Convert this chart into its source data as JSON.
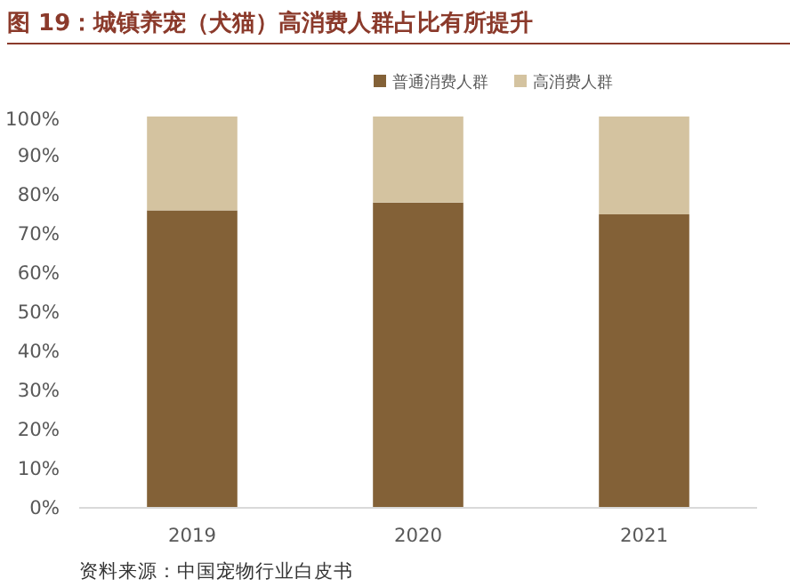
{
  "chart_data": {
    "type": "bar",
    "title": "图 19：城镇养宠（犬猫）高消费人群占比有所提升",
    "categories": [
      "2019",
      "2020",
      "2021"
    ],
    "stacked": true,
    "series": [
      {
        "name": "普通消费人群",
        "color": "#836137",
        "values": [
          76,
          78,
          75
        ]
      },
      {
        "name": "高消费人群",
        "color": "#d4c3a0",
        "values": [
          24,
          22,
          25
        ]
      }
    ],
    "ylim": [
      0,
      100
    ],
    "yticks": [
      {
        "value": 0,
        "label": "0%"
      },
      {
        "value": 10,
        "label": "10%"
      },
      {
        "value": 20,
        "label": "20%"
      },
      {
        "value": 30,
        "label": "30%"
      },
      {
        "value": 40,
        "label": "40%"
      },
      {
        "value": 50,
        "label": "50%"
      },
      {
        "value": 60,
        "label": "60%"
      },
      {
        "value": 70,
        "label": "70%"
      },
      {
        "value": 80,
        "label": "80%"
      },
      {
        "value": 90,
        "label": "90%"
      },
      {
        "value": 100,
        "label": "100%"
      }
    ],
    "legend": "top",
    "grid": false,
    "annotations": [
      "资料来源：中国宠物行业白皮书"
    ]
  }
}
